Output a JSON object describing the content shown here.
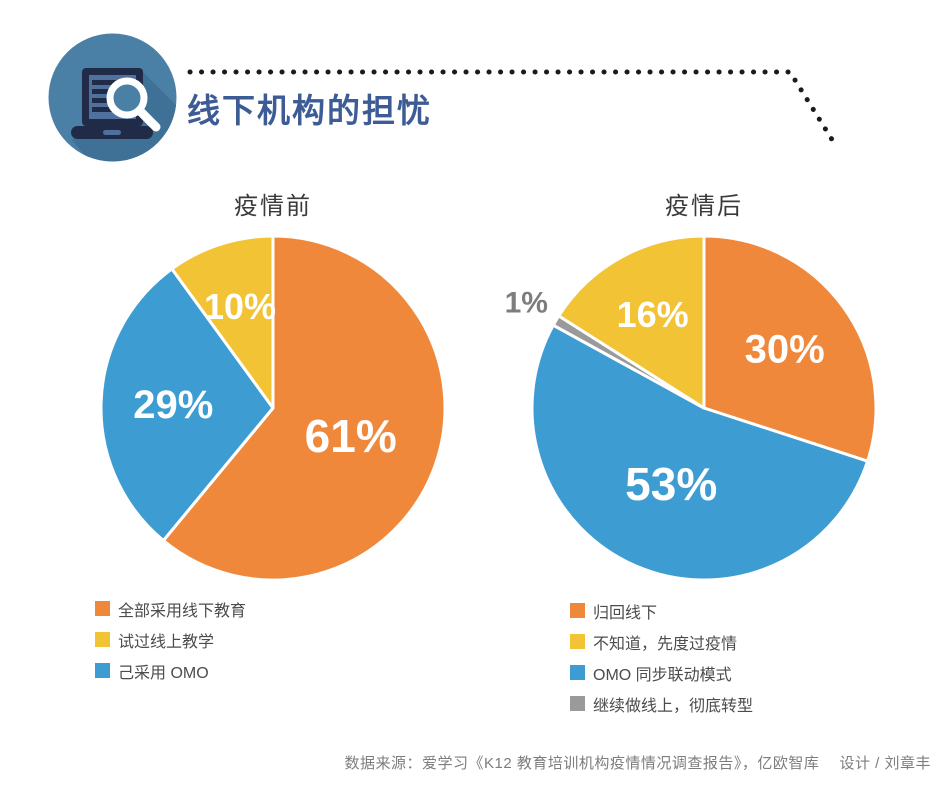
{
  "header": {
    "title": "线下机构的担忧",
    "icon": "laptop-search-icon"
  },
  "colors": {
    "orange": "#F0883C",
    "blue": "#3D9CD2",
    "yellow": "#F2C334",
    "gray": "#9A9A9A",
    "title_blue": "#3D5B95",
    "dotted_line": "#1B1B1B",
    "slice_label": "#FFFFFF",
    "outside_label": "#7D7D7D",
    "icon_circle": "#4A7FA6",
    "icon_shadow": "#3F7096",
    "icon_dark": "#202C47"
  },
  "chart_data": [
    {
      "type": "pie",
      "title": "疫情前",
      "start_angle": 0,
      "direction": "clockwise",
      "slices": [
        {
          "label": "全部采用线下教育",
          "value": 61,
          "color": "#F0883C"
        },
        {
          "label": "己采用 OMO",
          "value": 29,
          "color": "#3D9CD2"
        },
        {
          "label": "试过线上教学",
          "value": 10,
          "color": "#F2C334"
        }
      ],
      "legend_order": [
        0,
        2,
        1
      ]
    },
    {
      "type": "pie",
      "title": "疫情后",
      "start_angle": 0,
      "direction": "clockwise",
      "slices": [
        {
          "label": "归回线下",
          "value": 30,
          "color": "#F0883C"
        },
        {
          "label": "OMO 同步联动模式",
          "value": 53,
          "color": "#3D9CD2"
        },
        {
          "label": "继续做线上，彻底转型",
          "value": 1,
          "color": "#9A9A9A",
          "label_outside": true
        },
        {
          "label": "不知道，先度过疫情",
          "value": 16,
          "color": "#F2C334"
        }
      ],
      "legend_order": [
        0,
        3,
        1,
        2
      ]
    }
  ],
  "footer": {
    "source": "数据来源：爱学习《K12 教育培训机构疫情情况调查报告》，亿欧智库　 设计 / 刘章丰"
  }
}
